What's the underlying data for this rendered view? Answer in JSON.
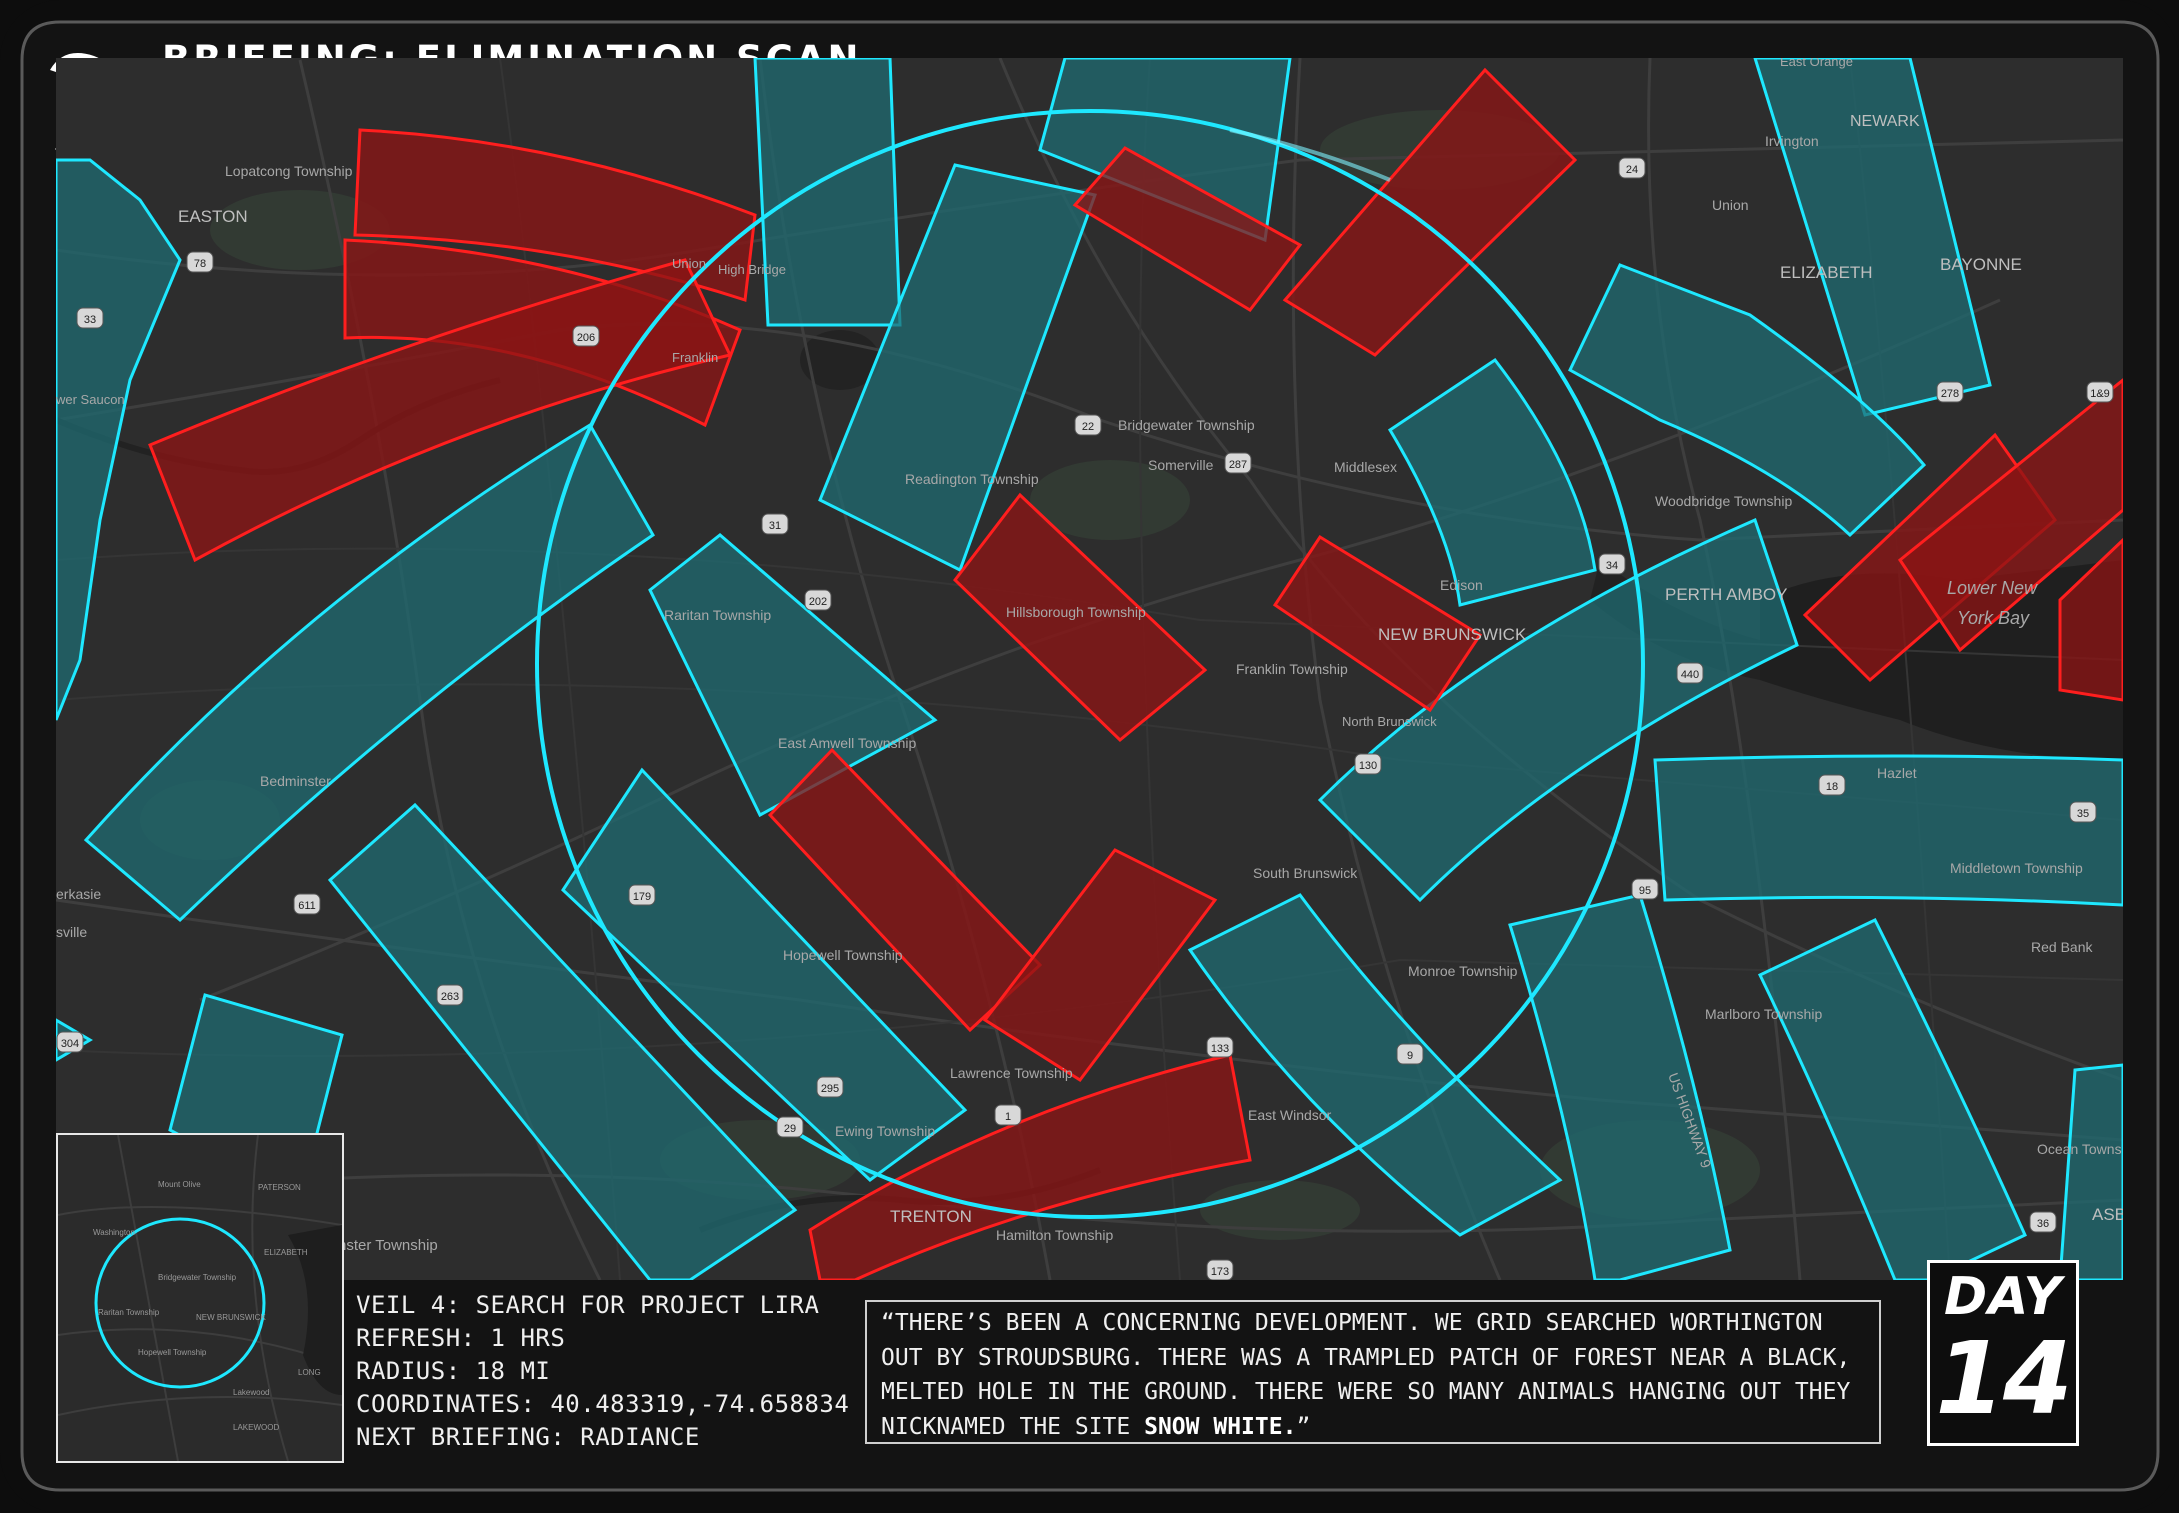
{
  "header": {
    "title": "BRIEFING: ELIMINATION SCAN",
    "logo_icon": "swoosh-logo-icon"
  },
  "colors": {
    "frame": "#141414",
    "border": "#e6e6e6",
    "cyan": "#00e5ff",
    "cyan_fill": "#1e6e74",
    "red": "#ff1a1a",
    "red_fill": "#8a1111",
    "accent_green": "#22dd77",
    "map_bg": "#2e2e2e"
  },
  "map": {
    "place_labels": [
      "Lopatcong Township",
      "EASTON",
      "High Bridge",
      "Union",
      "Franklin",
      "wer Saucon",
      "Readington Township",
      "Bridgewater Township",
      "Somerville",
      "Middlesex",
      "Raritan Township",
      "Hillsborough Township",
      "Franklin Township",
      "NEW BRUNSWICK",
      "North Brunswick",
      "Edison",
      "Woodbridge Township",
      "PERTH AMBOY",
      "ELIZABETH",
      "BAYONNE",
      "NEWARK",
      "Irvington",
      "Union",
      "East Orange",
      "Lower New",
      "York Bay",
      "East Amwell Township",
      "Bedminster",
      "South Brunswick",
      "Hopewell Township",
      "Lawrence Township",
      "Ewing Township",
      "East Windsor",
      "TRENTON",
      "Hamilton Township",
      "Monroe Township",
      "Marlboro Township",
      "Hazlet",
      "Middletown Township",
      "Red Bank",
      "Ocean Towns",
      "ASB",
      "erkasie",
      "sville",
      "nster Township",
      "US HIGHWAY 9"
    ],
    "route_shields": [
      "78",
      "33",
      "24",
      "22",
      "287",
      "206",
      "202",
      "31",
      "611",
      "263",
      "179",
      "295",
      "29",
      "1",
      "130",
      "133",
      "95",
      "18",
      "35",
      "36",
      "34",
      "440",
      "9",
      "278",
      "1&9",
      "173",
      "304"
    ]
  },
  "minimap": {
    "labels": [
      "PATERSON",
      "ELIZABETH",
      "NEW BRUNSWICK",
      "Bridgewater Township",
      "Raritan Township",
      "Lakewood",
      "LAKEWOOD",
      "Hopewell Township",
      "Mount Olive",
      "Washington",
      "LONG"
    ]
  },
  "info": {
    "line1": "VEIL 4: SEARCH FOR PROJECT LIRA",
    "line2": "REFRESH: 1 HRS",
    "line3": "RADIUS: 18 MI",
    "line4": "COORDINATES: 40.483319,-74.658834",
    "line5": "NEXT BRIEFING: RADIANCE"
  },
  "quote": {
    "text": "“THERE’S BEEN A CONCERNING DEVELOPMENT. WE GRID SEARCHED WORTHINGTON OUT BY STROUDSBURG. THERE WAS A TRAMPLED PATCH OF FOREST NEAR A BLACK, MELTED HOLE IN THE GROUND. THERE WERE SO MANY ANIMALS HANGING OUT THEY NICKNAMED THE SITE ",
    "highlight": "SNOW WHITE.",
    "close": "”"
  },
  "day": {
    "label": "DAY",
    "number": "14"
  }
}
